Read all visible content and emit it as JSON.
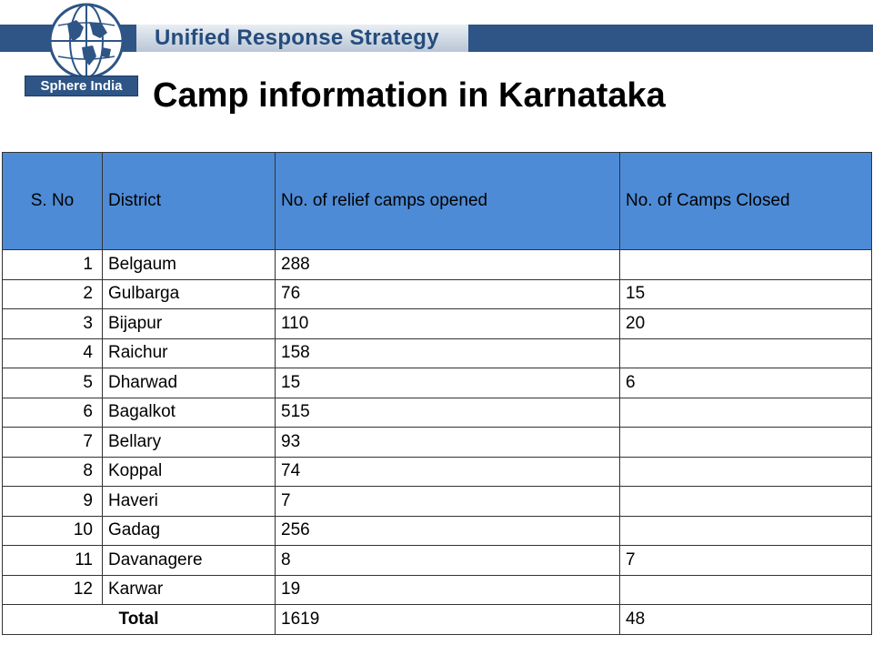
{
  "header": {
    "banner_text": "Unified Response Strategy",
    "logo_text": "Sphere India",
    "title": "Camp information in Karnataka"
  },
  "table": {
    "columns": [
      "S. No",
      "District",
      "No. of relief camps opened",
      "No. of Camps Closed"
    ],
    "rows": [
      {
        "sno": "1",
        "district": "Belgaum",
        "opened": "288",
        "closed": ""
      },
      {
        "sno": "2",
        "district": "Gulbarga",
        "opened": "76",
        "closed": "15"
      },
      {
        "sno": "3",
        "district": "Bijapur",
        "opened": "110",
        "closed": "20"
      },
      {
        "sno": "4",
        "district": "Raichur",
        "opened": "158",
        "closed": ""
      },
      {
        "sno": "5",
        "district": "Dharwad",
        "opened": "15",
        "closed": "6"
      },
      {
        "sno": "6",
        "district": "Bagalkot",
        "opened": "515",
        "closed": ""
      },
      {
        "sno": "7",
        "district": "Bellary",
        "opened": "93",
        "closed": ""
      },
      {
        "sno": "8",
        "district": "Koppal",
        "opened": "74",
        "closed": ""
      },
      {
        "sno": "9",
        "district": "Haveri",
        "opened": "7",
        "closed": ""
      },
      {
        "sno": "10",
        "district": "Gadag",
        "opened": "256",
        "closed": ""
      },
      {
        "sno": "11",
        "district": "Davanagere",
        "opened": "8",
        "closed": "7"
      },
      {
        "sno": "12",
        "district": "Karwar",
        "opened": "19",
        "closed": ""
      }
    ],
    "total": {
      "label": "Total",
      "opened": "1619",
      "closed": "48"
    }
  },
  "colors": {
    "banner": "#2e5586",
    "header_fill": "#4e8bd6"
  }
}
